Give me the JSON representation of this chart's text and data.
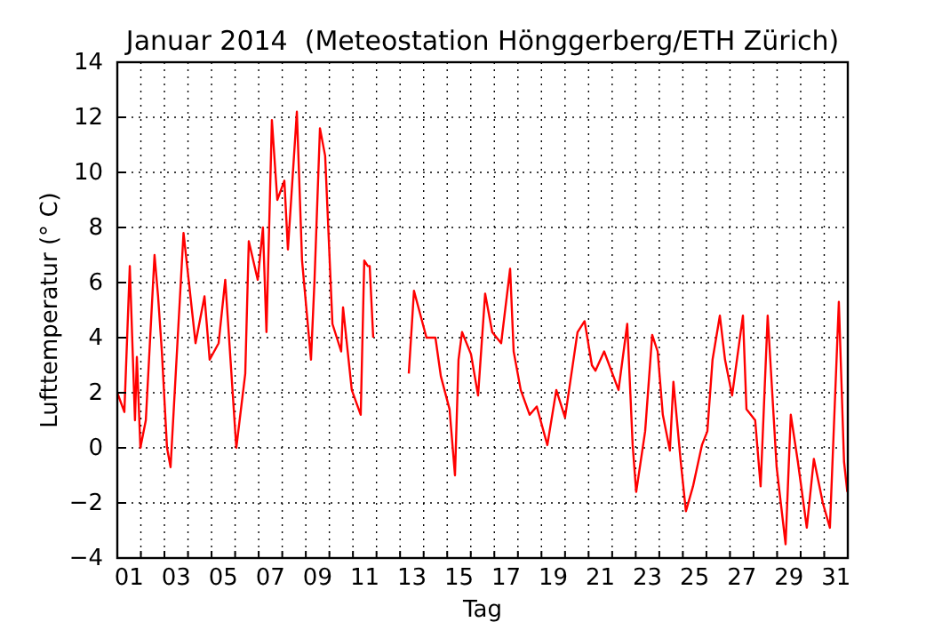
{
  "chart_data": {
    "type": "line",
    "title": "Januar 2014  (Meteostation Hönggerberg/ETH Zürich)",
    "xlabel": "Tag",
    "ylabel": "Lufttemperatur (° C)",
    "xlim": [
      1,
      32
    ],
    "ylim": [
      -4,
      14
    ],
    "xticks": [
      {
        "value": 1.5,
        "label": "01"
      },
      {
        "value": 3.5,
        "label": "03"
      },
      {
        "value": 5.5,
        "label": "05"
      },
      {
        "value": 7.5,
        "label": "07"
      },
      {
        "value": 9.5,
        "label": "09"
      },
      {
        "value": 11.5,
        "label": "11"
      },
      {
        "value": 13.5,
        "label": "13"
      },
      {
        "value": 15.5,
        "label": "15"
      },
      {
        "value": 17.5,
        "label": "17"
      },
      {
        "value": 19.5,
        "label": "19"
      },
      {
        "value": 21.5,
        "label": "21"
      },
      {
        "value": 23.5,
        "label": "23"
      },
      {
        "value": 25.5,
        "label": "25"
      },
      {
        "value": 27.5,
        "label": "27"
      },
      {
        "value": 29.5,
        "label": "29"
      },
      {
        "value": 31.5,
        "label": "31"
      },
      {
        "value": 2,
        "label": null
      },
      {
        "value": 3,
        "label": null
      },
      {
        "value": 4,
        "label": null
      },
      {
        "value": 5,
        "label": null
      },
      {
        "value": 6,
        "label": null
      },
      {
        "value": 7,
        "label": null
      },
      {
        "value": 8,
        "label": null
      },
      {
        "value": 9,
        "label": null
      },
      {
        "value": 10,
        "label": null
      },
      {
        "value": 11,
        "label": null
      },
      {
        "value": 12,
        "label": null
      },
      {
        "value": 13,
        "label": null
      },
      {
        "value": 14,
        "label": null
      },
      {
        "value": 15,
        "label": null
      },
      {
        "value": 16,
        "label": null
      },
      {
        "value": 17,
        "label": null
      },
      {
        "value": 18,
        "label": null
      },
      {
        "value": 19,
        "label": null
      },
      {
        "value": 20,
        "label": null
      },
      {
        "value": 21,
        "label": null
      },
      {
        "value": 22,
        "label": null
      },
      {
        "value": 23,
        "label": null
      },
      {
        "value": 24,
        "label": null
      },
      {
        "value": 25,
        "label": null
      },
      {
        "value": 26,
        "label": null
      },
      {
        "value": 27,
        "label": null
      },
      {
        "value": 28,
        "label": null
      },
      {
        "value": 29,
        "label": null
      },
      {
        "value": 30,
        "label": null
      },
      {
        "value": 31,
        "label": null
      }
    ],
    "yticks": [
      {
        "value": -4,
        "label": "−4"
      },
      {
        "value": -2,
        "label": "−2"
      },
      0,
      2,
      4,
      6,
      8,
      10,
      12,
      14
    ],
    "grid": true,
    "line_style": "solid",
    "marker": "none",
    "series": [
      {
        "color": "#ff0000",
        "x": [
          1.0,
          1.3,
          1.53,
          1.75,
          1.83,
          1.98,
          2.21,
          2.58,
          2.73,
          2.89,
          3.11,
          3.26,
          3.81,
          4.32,
          4.7,
          4.92,
          5.3,
          5.58,
          6.05,
          6.43,
          6.58,
          6.96,
          7.18,
          7.33,
          7.56,
          7.79,
          8.09,
          8.24,
          8.62,
          8.84,
          9.22,
          9.37,
          9.6,
          9.82,
          10.13,
          10.5,
          10.58,
          10.95,
          11.33,
          11.48,
          11.63,
          11.71,
          11.86,
          12.5,
          13.37,
          13.59,
          14.12,
          14.5,
          14.73,
          15.1,
          15.33,
          15.48,
          15.63,
          16.01,
          16.31,
          16.61,
          16.91,
          17.29,
          17.67,
          17.82,
          18.12,
          18.5,
          18.8,
          19.25,
          19.63,
          20.0,
          20.53,
          20.83,
          21.14,
          21.29,
          21.66,
          22.27,
          22.64,
          22.87,
          23.02,
          23.4,
          23.7,
          23.93,
          24.15,
          24.45,
          24.6,
          24.91,
          25.13,
          25.43,
          25.81,
          26.04,
          26.26,
          26.57,
          26.79,
          27.09,
          27.55,
          27.7,
          28.07,
          28.3,
          28.6,
          28.98,
          29.36,
          29.58,
          29.88,
          30.26,
          30.56,
          30.94,
          31.24,
          31.62,
          31.84,
          31.98
        ],
        "values": [
          2.0,
          1.3,
          6.6,
          1.0,
          3.3,
          0.0,
          1.0,
          7.0,
          5.5,
          3.5,
          0.0,
          -0.7,
          7.8,
          3.8,
          5.5,
          3.2,
          3.8,
          6.1,
          0.0,
          2.7,
          7.5,
          6.1,
          8.0,
          4.2,
          11.9,
          9.0,
          9.7,
          7.2,
          12.2,
          6.8,
          3.2,
          6.1,
          11.6,
          10.6,
          4.5,
          3.5,
          5.1,
          2.1,
          1.2,
          6.8,
          6.6,
          6.6,
          4.0,
          null,
          2.7,
          5.7,
          4.0,
          4.0,
          2.6,
          1.4,
          -1.0,
          3.2,
          4.2,
          3.4,
          1.9,
          5.6,
          4.2,
          3.8,
          6.5,
          3.5,
          2.1,
          1.2,
          1.5,
          0.1,
          2.1,
          1.1,
          4.2,
          4.6,
          3.0,
          2.8,
          3.5,
          2.1,
          4.5,
          0.1,
          -1.6,
          0.6,
          4.1,
          3.5,
          1.2,
          -0.1,
          2.4,
          -0.5,
          -2.3,
          -1.4,
          0.1,
          0.6,
          3.2,
          4.8,
          3.2,
          1.9,
          4.8,
          1.4,
          1.0,
          -1.4,
          4.8,
          -0.7,
          -3.5,
          1.2,
          -0.5,
          -2.9,
          -0.4,
          -2.0,
          -2.9,
          5.3,
          -0.5,
          -1.6
        ]
      }
    ]
  }
}
